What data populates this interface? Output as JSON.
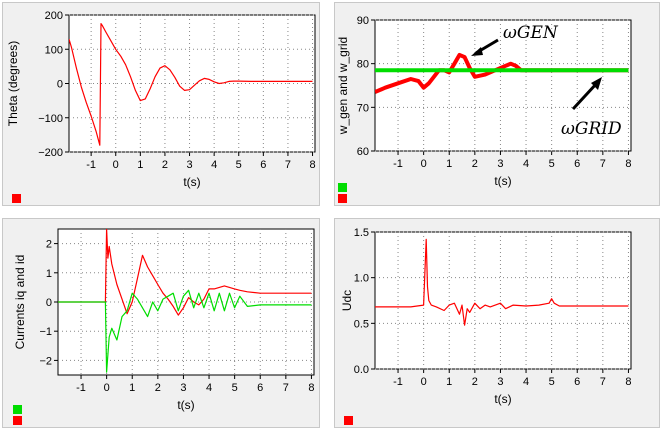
{
  "chart_data": [
    {
      "type": "line",
      "title": "",
      "xlabel": "t(s)",
      "ylabel": "Theta (degrees)",
      "xlim": [
        -1.9,
        8.1
      ],
      "ylim": [
        -200,
        200
      ],
      "xticks": [
        "-1",
        "0",
        "1",
        "2",
        "3",
        "4",
        "5",
        "6",
        "7",
        "8"
      ],
      "yticks": [
        "200",
        "100",
        "0",
        "−100",
        "−200"
      ],
      "grid": true,
      "legend": "bottom-left",
      "series": [
        {
          "color": "#ff0000",
          "x": [
            -1.9,
            -1.8,
            -1.6,
            -1.4,
            -1.2,
            -1.0,
            -0.8,
            -0.65,
            -0.6,
            -0.55,
            -0.4,
            -0.2,
            0.0,
            0.2,
            0.4,
            0.6,
            0.8,
            1.0,
            1.2,
            1.4,
            1.6,
            1.8,
            2.0,
            2.2,
            2.4,
            2.6,
            2.8,
            3.0,
            3.2,
            3.4,
            3.6,
            3.8,
            4.0,
            4.2,
            4.4,
            4.6,
            4.8,
            5.0,
            5.5,
            6.0,
            7.0,
            8.0
          ],
          "y": [
            130,
            105,
            45,
            -10,
            -55,
            -95,
            -140,
            -180,
            175,
            170,
            150,
            125,
            100,
            80,
            55,
            20,
            -20,
            -50,
            -45,
            -15,
            20,
            45,
            52,
            40,
            18,
            -8,
            -20,
            -18,
            -5,
            8,
            15,
            12,
            5,
            0,
            2,
            6,
            7,
            7,
            6,
            6,
            6,
            6
          ]
        }
      ]
    },
    {
      "type": "line",
      "title": "",
      "xlabel": "t(s)",
      "ylabel": "w_gen and w_grid",
      "xlim": [
        -1.9,
        8.1
      ],
      "ylim": [
        60,
        90
      ],
      "xticks": [
        "-1",
        "0",
        "1",
        "2",
        "3",
        "4",
        "5",
        "6",
        "7",
        "8"
      ],
      "yticks": [
        "90",
        "80",
        "70",
        "60"
      ],
      "grid": true,
      "legend": "bottom-left",
      "annotations": [
        "ωGEN",
        "ωGRID"
      ],
      "series": [
        {
          "color": "#ff0000",
          "x": [
            -1.9,
            -1.5,
            -1.0,
            -0.5,
            -0.2,
            0.0,
            0.2,
            0.4,
            0.6,
            0.8,
            1.0,
            1.2,
            1.4,
            1.6,
            1.8,
            2.0,
            2.4,
            2.8,
            3.2,
            3.4,
            3.6,
            3.8,
            4.2,
            5.0,
            6.0,
            7.0,
            8.0
          ],
          "y": [
            73.5,
            74.5,
            75.5,
            76.5,
            76.0,
            74.5,
            75.5,
            77.0,
            78.5,
            78.5,
            78.0,
            80.0,
            82.0,
            81.5,
            79.0,
            77.0,
            77.5,
            78.5,
            79.5,
            80.0,
            79.5,
            78.5,
            78.5,
            78.5,
            78.5,
            78.5,
            78.5
          ]
        },
        {
          "color": "#00dd00",
          "x": [
            -1.9,
            0.0,
            1.0,
            2.0,
            3.0,
            4.0,
            5.0,
            6.0,
            7.0,
            8.0
          ],
          "y": [
            78.5,
            78.5,
            78.5,
            78.5,
            78.5,
            78.5,
            78.5,
            78.5,
            78.5,
            78.5
          ]
        }
      ]
    },
    {
      "type": "line",
      "title": "",
      "xlabel": "t(s)",
      "ylabel": "Currents iq and id",
      "xlim": [
        -1.9,
        8.1
      ],
      "ylim": [
        -2.5,
        2.5
      ],
      "xticks": [
        "-1",
        "0",
        "1",
        "2",
        "3",
        "4",
        "5",
        "6",
        "7",
        "8"
      ],
      "yticks": [
        "2",
        "1",
        "0",
        "−1",
        "−2"
      ],
      "grid": true,
      "legend": "bottom-left",
      "series": [
        {
          "color": "#ff0000",
          "x": [
            -1.9,
            -0.05,
            0.0,
            0.05,
            0.1,
            0.2,
            0.4,
            0.6,
            0.8,
            1.0,
            1.2,
            1.4,
            1.6,
            1.8,
            2.0,
            2.2,
            2.4,
            2.6,
            2.8,
            3.0,
            3.2,
            3.4,
            3.6,
            3.8,
            4.0,
            4.2,
            4.4,
            4.6,
            4.8,
            5.0,
            5.2,
            5.5,
            6.0,
            7.0,
            8.0
          ],
          "y": [
            0.0,
            0.0,
            2.5,
            1.5,
            1.9,
            1.3,
            0.6,
            0.1,
            -0.4,
            0.0,
            0.8,
            1.6,
            1.2,
            0.9,
            0.6,
            0.3,
            0.1,
            -0.15,
            -0.45,
            -0.2,
            0.15,
            0.0,
            -0.1,
            0.1,
            0.45,
            0.45,
            0.5,
            0.55,
            0.5,
            0.45,
            0.4,
            0.35,
            0.3,
            0.3,
            0.3
          ]
        },
        {
          "color": "#00dd00",
          "x": [
            -1.9,
            -0.05,
            0.0,
            0.1,
            0.2,
            0.4,
            0.6,
            0.8,
            1.0,
            1.2,
            1.4,
            1.6,
            1.8,
            2.0,
            2.2,
            2.4,
            2.6,
            2.8,
            3.0,
            3.2,
            3.4,
            3.6,
            3.8,
            4.0,
            4.2,
            4.4,
            4.6,
            4.8,
            5.0,
            5.2,
            5.5,
            6.0,
            7.0,
            8.0
          ],
          "y": [
            0.0,
            0.0,
            -2.4,
            -1.2,
            -0.9,
            -1.3,
            -0.5,
            -0.3,
            0.3,
            0.1,
            -0.2,
            -0.5,
            0.0,
            -0.3,
            0.1,
            0.2,
            0.3,
            -0.3,
            0.2,
            0.4,
            -0.2,
            0.3,
            -0.2,
            0.3,
            -0.3,
            0.3,
            -0.3,
            0.3,
            -0.2,
            0.2,
            -0.15,
            -0.1,
            -0.1,
            -0.1
          ]
        }
      ]
    },
    {
      "type": "line",
      "title": "",
      "xlabel": "t(s)",
      "ylabel": "Udc",
      "xlim": [
        -1.9,
        8.1
      ],
      "ylim": [
        0.0,
        1.5
      ],
      "xticks": [
        "-1",
        "0",
        "1",
        "2",
        "3",
        "4",
        "5",
        "6",
        "7",
        "8"
      ],
      "yticks": [
        "1.5",
        "1.0",
        "0.5",
        "0.0"
      ],
      "grid": true,
      "legend": "bottom-left",
      "series": [
        {
          "color": "#ff0000",
          "x": [
            -1.9,
            -0.5,
            0.0,
            0.1,
            0.15,
            0.2,
            0.3,
            0.5,
            0.8,
            1.0,
            1.2,
            1.4,
            1.5,
            1.6,
            1.7,
            1.8,
            2.0,
            2.2,
            2.4,
            2.6,
            3.0,
            3.2,
            3.5,
            4.0,
            4.5,
            4.9,
            5.0,
            5.1,
            5.3,
            6.0,
            7.0,
            8.0
          ],
          "y": [
            0.68,
            0.68,
            0.7,
            1.42,
            0.9,
            0.75,
            0.7,
            0.68,
            0.64,
            0.7,
            0.72,
            0.6,
            0.7,
            0.48,
            0.66,
            0.62,
            0.72,
            0.66,
            0.7,
            0.68,
            0.72,
            0.66,
            0.7,
            0.69,
            0.7,
            0.72,
            0.77,
            0.72,
            0.69,
            0.69,
            0.69,
            0.69
          ]
        }
      ]
    }
  ],
  "legend_colors": {
    "green": "#00dd00",
    "red": "#ff0000"
  }
}
